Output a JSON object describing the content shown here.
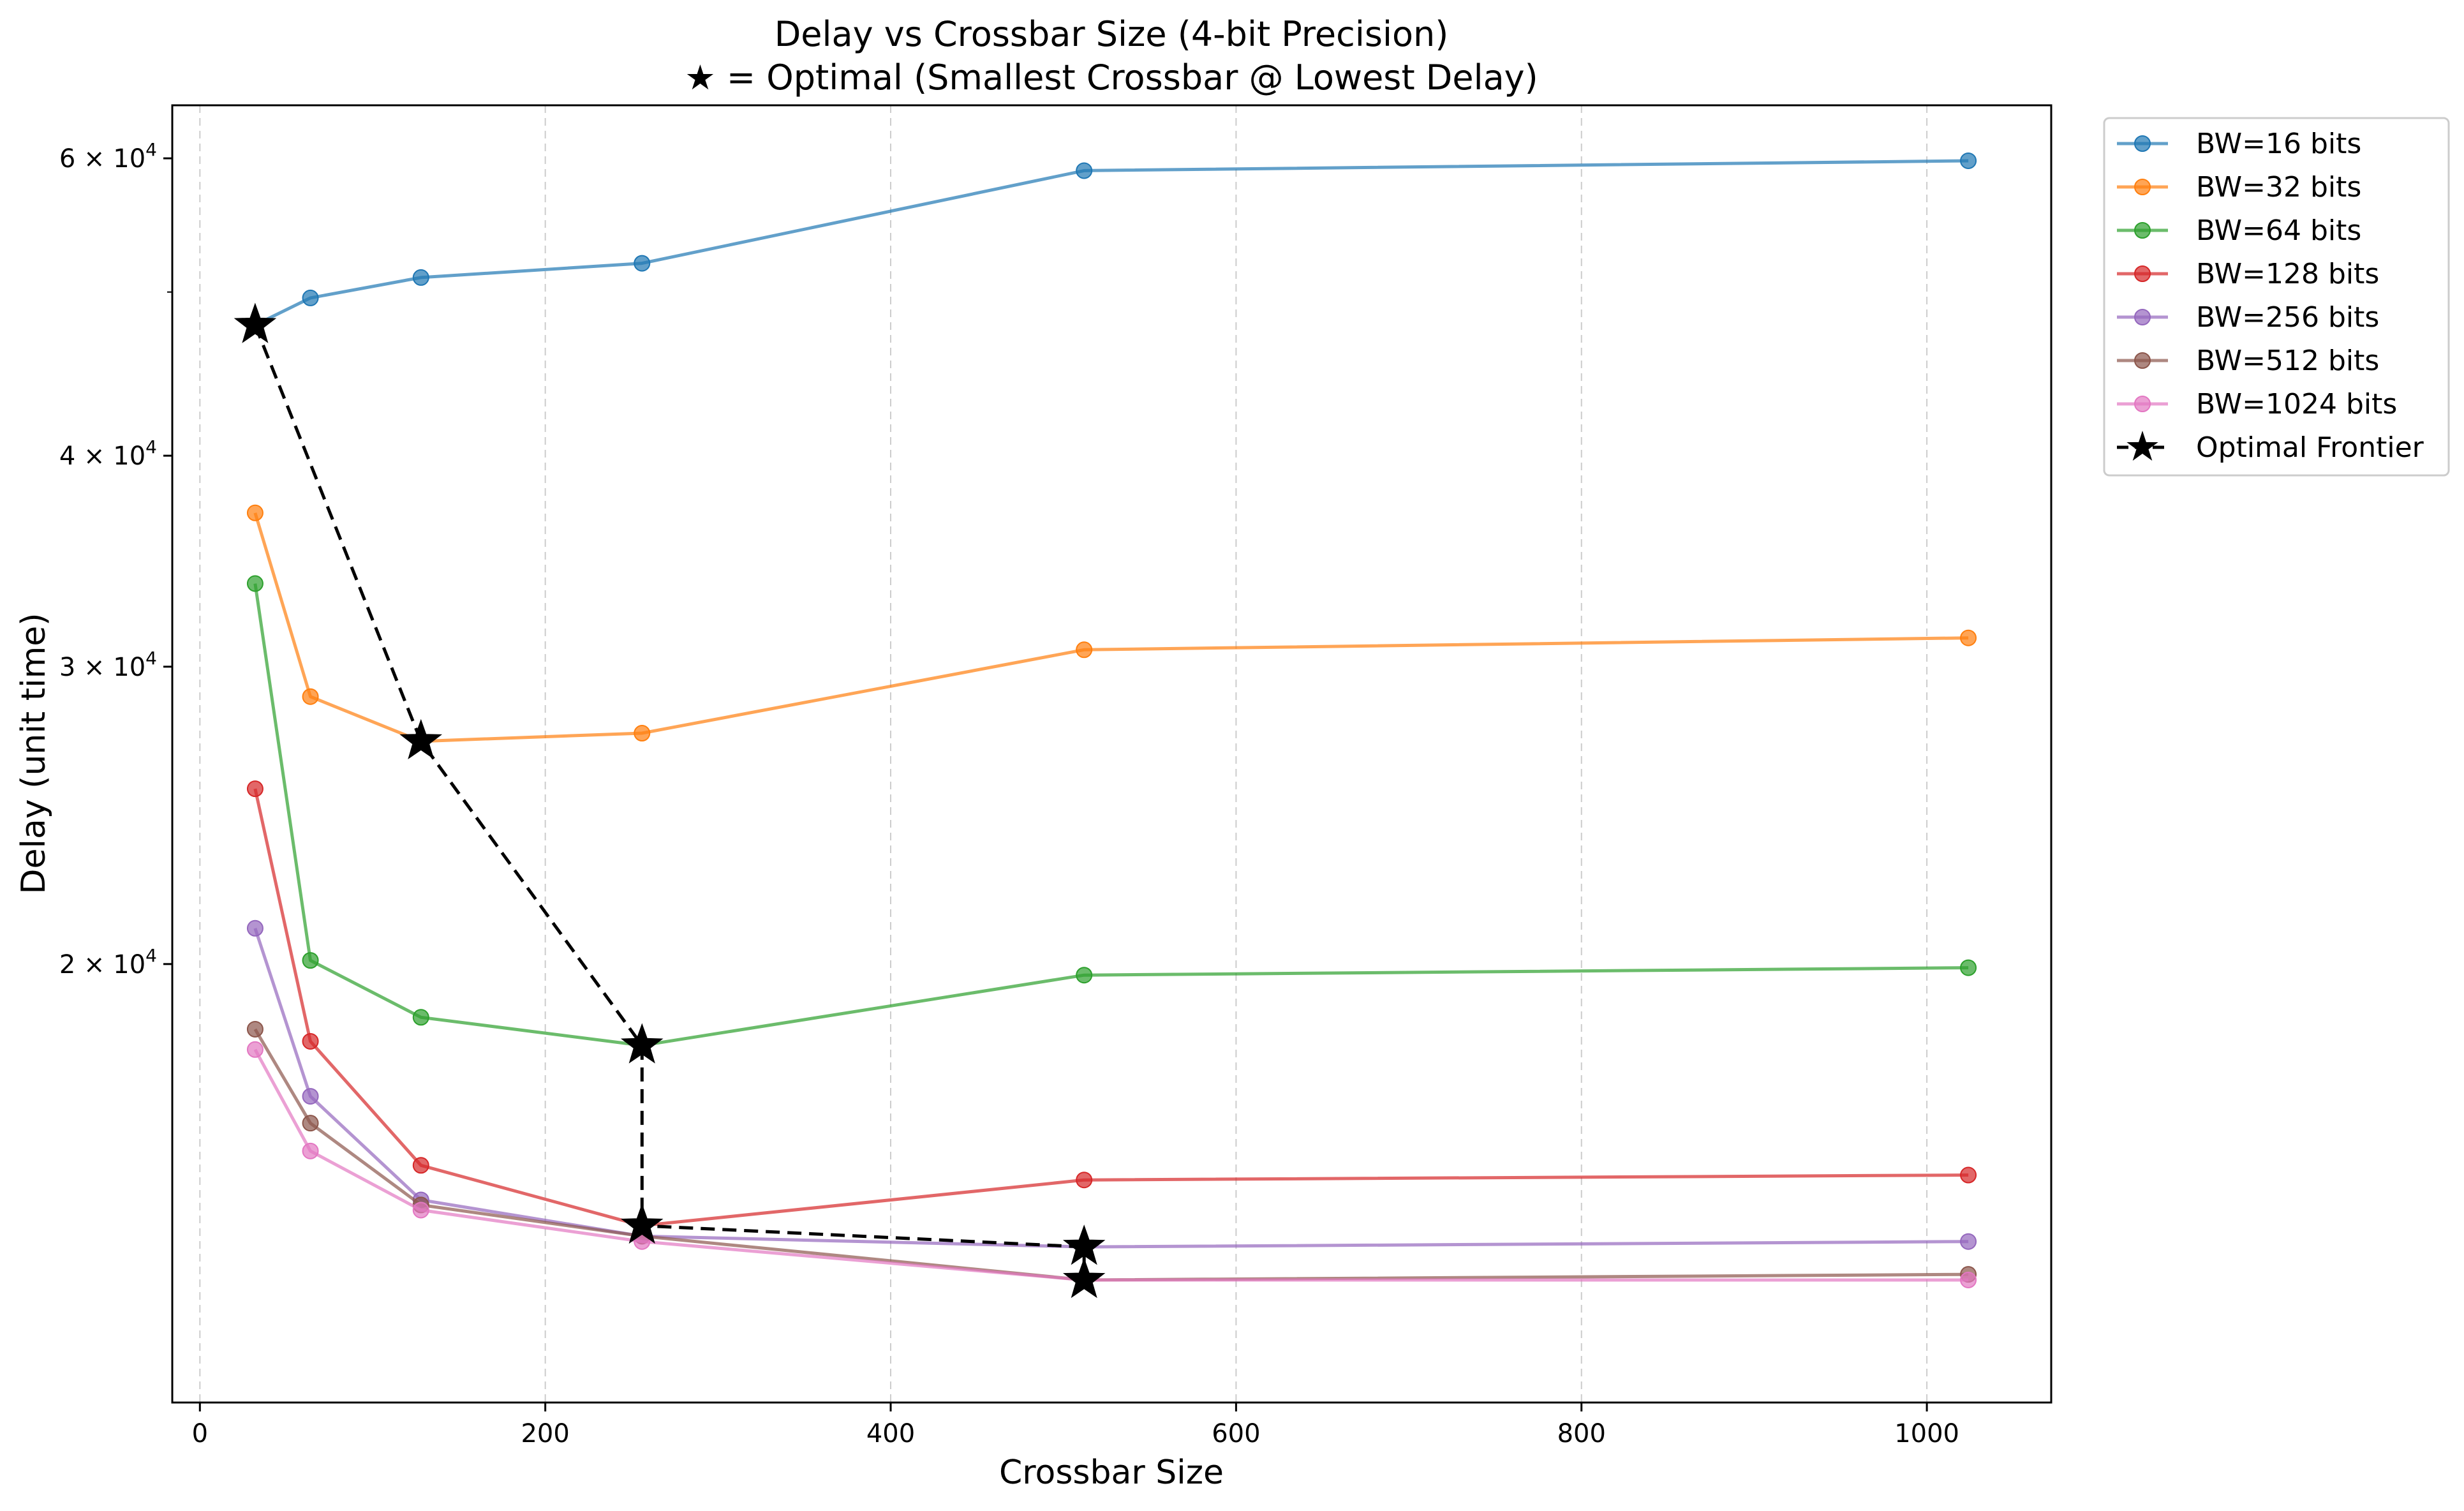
{
  "chart_data": {
    "type": "line",
    "title": "Delay vs Crossbar Size (4-bit Precision)",
    "subtitle": "★ = Optimal (Smallest Crossbar @ Lowest Delay)",
    "xlabel": "Crossbar Size",
    "ylabel": "Delay (unit time)",
    "x_ticks": [
      0,
      200,
      400,
      600,
      800,
      1000
    ],
    "x_tick_labels": [
      "0",
      "200",
      "400",
      "600",
      "800",
      "1000"
    ],
    "xlim": [
      -16,
      1072
    ],
    "y_scale": "log",
    "ylim": [
      11000,
      64500
    ],
    "y_ticks": [
      {
        "value": 20000,
        "mantissa": "2",
        "base": "10",
        "exp": "4"
      },
      {
        "value": 30000,
        "mantissa": "3",
        "base": "10",
        "exp": "4"
      },
      {
        "value": 40000,
        "mantissa": "4",
        "base": "10",
        "exp": "4"
      },
      {
        "value": 60000,
        "mantissa": "6",
        "base": "10",
        "exp": "4"
      }
    ],
    "y_tick_sep": "×",
    "y_minor_ticks": [
      50000
    ],
    "grid": "x-only, dashed",
    "legend_placement": "outside right, top",
    "x": [
      32,
      64,
      128,
      256,
      512,
      1024
    ],
    "series": [
      {
        "name": "BW=16 bits",
        "color": "#1f77b4",
        "values": [
          47800,
          49600,
          51000,
          52000,
          59000,
          59800
        ]
      },
      {
        "name": "BW=32 bits",
        "color": "#ff7f0e",
        "values": [
          37000,
          28800,
          27100,
          27400,
          30700,
          31200
        ]
      },
      {
        "name": "BW=64 bits",
        "color": "#2ca02c",
        "values": [
          33600,
          20100,
          18600,
          17900,
          19700,
          19900
        ]
      },
      {
        "name": "BW=128 bits",
        "color": "#d62728",
        "values": [
          25400,
          18000,
          15200,
          14000,
          14900,
          15000
        ]
      },
      {
        "name": "BW=256 bits",
        "color": "#9467bd",
        "values": [
          21000,
          16700,
          14500,
          13800,
          13600,
          13700
        ]
      },
      {
        "name": "BW=512 bits",
        "color": "#8c564b",
        "values": [
          18300,
          16100,
          14400,
          13800,
          13000,
          13100
        ]
      },
      {
        "name": "BW=1024 bits",
        "color": "#e377c2",
        "values": [
          17800,
          15500,
          14300,
          13700,
          13000,
          13000
        ]
      }
    ],
    "frontier": {
      "name": "Optimal Frontier",
      "color": "#000000",
      "x": [
        32,
        128,
        256,
        256,
        512,
        512
      ],
      "values": [
        47800,
        27100,
        17900,
        14000,
        13600,
        13000
      ]
    }
  }
}
